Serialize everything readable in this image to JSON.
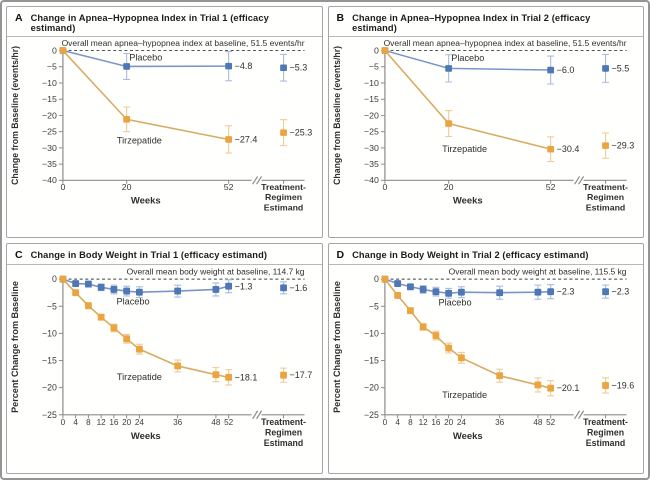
{
  "figure": {
    "colors": {
      "placebo_marker": "#4e77b6",
      "placebo_line": "#7a95c6",
      "placebo_error": "#a9bcd8",
      "tirzepatide_marker": "#eba43f",
      "tirzepatide_line": "#d9ab63",
      "tirzepatide_error": "#efcb98",
      "axis": "#8b8b8b",
      "dashed_line": "#3d3d3d",
      "text": "#2f2f2f",
      "tick_text": "#3c3c3c"
    }
  },
  "chart_data": [
    {
      "id": "A",
      "type": "line",
      "title": "Change in Apnea–Hypopnea Index in Trial 1 (efficacy estimand)",
      "annotation": "Overall mean apnea–hypopnea index at baseline, 51.5 events/hr",
      "xlabel": "Weeks",
      "ylabel": "Change from Baseline (events/hr)",
      "ylim": [
        -40,
        0
      ],
      "ytick_step": 5,
      "xticks": [
        0,
        20,
        52
      ],
      "xmax": 52,
      "estimand_axis_label": [
        "Treatment-",
        "Regimen",
        "Estimand"
      ],
      "series": [
        {
          "name": "Placebo",
          "color_key": "placebo",
          "x": [
            0,
            20,
            52
          ],
          "y": [
            0,
            -4.9,
            -4.8
          ],
          "err": [
            0,
            4.0,
            4.5
          ],
          "end_label": "−4.8",
          "estimand": {
            "y": -5.3,
            "err": 4.1,
            "label": "−5.3"
          },
          "name_pos": {
            "x": 26,
            "y": -3.0
          }
        },
        {
          "name": "Tirzepatide",
          "color_key": "tirzepatide",
          "x": [
            0,
            20,
            52
          ],
          "y": [
            0,
            -21.2,
            -27.4
          ],
          "err": [
            0,
            3.8,
            4.2
          ],
          "end_label": "−27.4",
          "estimand": {
            "y": -25.3,
            "err": 4.0,
            "label": "−25.3"
          },
          "name_pos": {
            "x": 24,
            "y": -28.6
          }
        }
      ]
    },
    {
      "id": "B",
      "type": "line",
      "title": "Change in Apnea–Hypopnea Index in Trial 2 (efficacy estimand)",
      "annotation": "Overall mean apnea–hypopnea index at baseline, 51.5 events/hr",
      "xlabel": "Weeks",
      "ylabel": "Change from Baseline (events/hr)",
      "ylim": [
        -40,
        0
      ],
      "ytick_step": 5,
      "xticks": [
        0,
        20,
        52
      ],
      "xmax": 52,
      "estimand_axis_label": [
        "Treatment-",
        "Regimen",
        "Estimand"
      ],
      "series": [
        {
          "name": "Placebo",
          "color_key": "placebo",
          "x": [
            0,
            20,
            52
          ],
          "y": [
            0,
            -5.5,
            -6.0
          ],
          "err": [
            0,
            4.2,
            4.3
          ],
          "end_label": "−6.0",
          "estimand": {
            "y": -5.5,
            "err": 4.3,
            "label": "−5.5"
          },
          "name_pos": {
            "x": 26,
            "y": -3.2
          }
        },
        {
          "name": "Tirzepatide",
          "color_key": "tirzepatide",
          "x": [
            0,
            20,
            52
          ],
          "y": [
            0,
            -22.5,
            -30.4
          ],
          "err": [
            0,
            4.0,
            3.8
          ],
          "end_label": "−30.4",
          "estimand": {
            "y": -29.3,
            "err": 3.9,
            "label": "−29.3"
          },
          "name_pos": {
            "x": 25,
            "y": -31.2
          }
        }
      ]
    },
    {
      "id": "C",
      "type": "line",
      "title": "Change in Body Weight in Trial 1 (efficacy estimand)",
      "annotation": "Overall mean body weight at baseline, 114.7 kg",
      "xlabel": "Weeks",
      "ylabel": "Percent Change from Baseline",
      "ylim": [
        -25,
        0
      ],
      "ytick_step": 5,
      "xticks": [
        0,
        4,
        8,
        12,
        16,
        20,
        24,
        36,
        48,
        52
      ],
      "xmax": 52,
      "estimand_axis_label": [
        "Treatment-",
        "Regimen",
        "Estimand"
      ],
      "series": [
        {
          "name": "Placebo",
          "color_key": "placebo",
          "x": [
            0,
            4,
            8,
            12,
            16,
            20,
            24,
            36,
            48,
            52
          ],
          "y": [
            0,
            -0.8,
            -0.9,
            -1.5,
            -1.9,
            -2.2,
            -2.4,
            -2.2,
            -1.9,
            -1.3
          ],
          "err": [
            0,
            0.4,
            0.5,
            0.6,
            0.8,
            0.9,
            1.0,
            1.1,
            1.2,
            1.2
          ],
          "end_label": "−1.3",
          "estimand": {
            "y": -1.6,
            "err": 1.1,
            "label": "−1.6"
          },
          "name_pos": {
            "x": 22,
            "y": -4.7
          }
        },
        {
          "name": "Tirzepatide",
          "color_key": "tirzepatide",
          "x": [
            0,
            4,
            8,
            12,
            16,
            20,
            24,
            36,
            48,
            52
          ],
          "y": [
            0,
            -2.5,
            -4.9,
            -7.0,
            -9.0,
            -11.0,
            -12.9,
            -16.0,
            -17.6,
            -18.1
          ],
          "err": [
            0,
            0.3,
            0.4,
            0.5,
            0.7,
            0.8,
            0.9,
            1.1,
            1.3,
            1.4
          ],
          "end_label": "−18.1",
          "estimand": {
            "y": -17.7,
            "err": 1.3,
            "label": "−17.7"
          },
          "name_pos": {
            "x": 24,
            "y": -18.6
          }
        }
      ]
    },
    {
      "id": "D",
      "type": "line",
      "title": "Change in Body Weight in Trial 2 (efficacy estimand)",
      "annotation": "Overall mean body weight at baseline, 115.5 kg",
      "xlabel": "Weeks",
      "ylabel": "Percent Change from Baseline",
      "ylim": [
        -25,
        0
      ],
      "ytick_step": 5,
      "xticks": [
        0,
        4,
        8,
        12,
        16,
        20,
        24,
        36,
        48,
        52
      ],
      "xmax": 52,
      "estimand_axis_label": [
        "Treatment-",
        "Regimen",
        "Estimand"
      ],
      "series": [
        {
          "name": "Placebo",
          "color_key": "placebo",
          "x": [
            0,
            4,
            8,
            12,
            16,
            20,
            24,
            36,
            48,
            52
          ],
          "y": [
            0,
            -0.8,
            -1.4,
            -1.9,
            -2.3,
            -2.6,
            -2.4,
            -2.5,
            -2.4,
            -2.3
          ],
          "err": [
            0,
            0.4,
            0.5,
            0.7,
            0.8,
            0.9,
            1.0,
            1.2,
            1.3,
            1.3
          ],
          "end_label": "−2.3",
          "estimand": {
            "y": -2.3,
            "err": 1.2,
            "label": "−2.3"
          },
          "name_pos": {
            "x": 22,
            "y": -4.9
          }
        },
        {
          "name": "Tirzepatide",
          "color_key": "tirzepatide",
          "x": [
            0,
            4,
            8,
            12,
            16,
            20,
            24,
            36,
            48,
            52
          ],
          "y": [
            0,
            -3.0,
            -5.8,
            -8.8,
            -10.4,
            -12.7,
            -14.5,
            -17.8,
            -19.5,
            -20.1
          ],
          "err": [
            0,
            0.3,
            0.5,
            0.6,
            0.8,
            0.9,
            1.0,
            1.2,
            1.3,
            1.4
          ],
          "end_label": "−20.1",
          "estimand": {
            "y": -19.6,
            "err": 1.4,
            "label": "−19.6"
          },
          "name_pos": {
            "x": 25,
            "y": -21.9
          }
        }
      ]
    }
  ]
}
